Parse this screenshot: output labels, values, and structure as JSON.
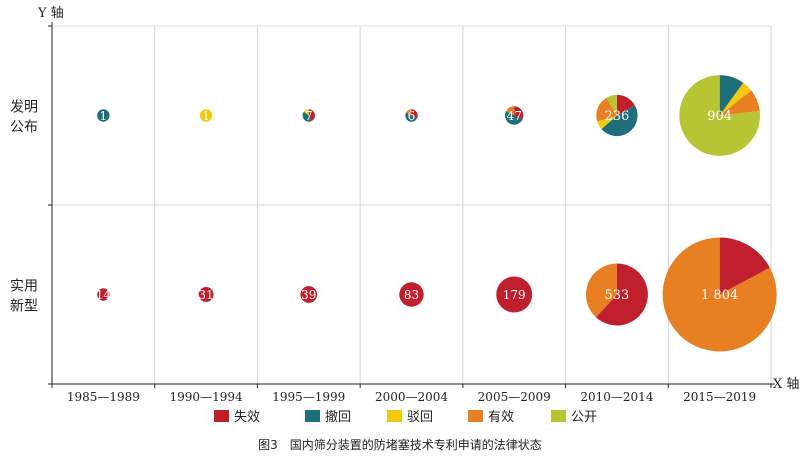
{
  "caption": "图3　国内筛分装置的防堵塞技术专利申请的法律状态",
  "chart_data": {
    "type": "bubble-pie",
    "title": "",
    "xlabel": "X 轴",
    "ylabel": "Y 轴",
    "categories": [
      "1985—1989",
      "1990—1994",
      "1995—1999",
      "2000—2004",
      "2005—2009",
      "2010—2014",
      "2015—2019"
    ],
    "rows": [
      {
        "label": [
          "发明",
          "公布"
        ]
      },
      {
        "label": [
          "实用",
          "新型"
        ]
      }
    ],
    "legend": [
      {
        "name": "失效",
        "color": "#c0202e"
      },
      {
        "name": "撤回",
        "color": "#1f6f7a"
      },
      {
        "name": "驳回",
        "color": "#f2c90f"
      },
      {
        "name": "有效",
        "color": "#e87f23"
      },
      {
        "name": "公开",
        "color": "#b7c535"
      }
    ],
    "legend_placement": "bottom",
    "grid": true,
    "cells": [
      {
        "row": 0,
        "col": 0,
        "total": 1,
        "total_label": "1",
        "slices": {
          "撤回": 1
        }
      },
      {
        "row": 0,
        "col": 1,
        "total": 1,
        "total_label": "1",
        "slices": {
          "驳回": 1
        }
      },
      {
        "row": 0,
        "col": 2,
        "total": 7,
        "total_label": "7",
        "slices": {
          "失效": 3,
          "撤回": 3,
          "驳回": 1
        }
      },
      {
        "row": 0,
        "col": 3,
        "total": 6,
        "total_label": "6",
        "slices": {
          "失效": 2,
          "撤回": 3,
          "有效": 1
        }
      },
      {
        "row": 0,
        "col": 4,
        "total": 47,
        "total_label": "47",
        "slices": {
          "失效": 15,
          "撤回": 24,
          "有效": 8
        }
      },
      {
        "row": 0,
        "col": 5,
        "total": 236,
        "total_label": "236",
        "slices": {
          "失效": 40,
          "撤回": 110,
          "驳回": 16,
          "有效": 50,
          "公开": 20
        }
      },
      {
        "row": 0,
        "col": 6,
        "total": 904,
        "total_label": "904",
        "slices": {
          "撤回": 90,
          "驳回": 40,
          "有效": 80,
          "公开": 694
        }
      },
      {
        "row": 1,
        "col": 0,
        "total": 14,
        "total_label": "14",
        "slices": {
          "失效": 14
        }
      },
      {
        "row": 1,
        "col": 1,
        "total": 31,
        "total_label": "31",
        "slices": {
          "失效": 31
        }
      },
      {
        "row": 1,
        "col": 2,
        "total": 39,
        "total_label": "39",
        "slices": {
          "失效": 39
        }
      },
      {
        "row": 1,
        "col": 3,
        "total": 83,
        "total_label": "83",
        "slices": {
          "失效": 83
        }
      },
      {
        "row": 1,
        "col": 4,
        "total": 179,
        "total_label": "179",
        "slices": {
          "失效": 179
        }
      },
      {
        "row": 1,
        "col": 5,
        "total": 533,
        "total_label": "533",
        "slices": {
          "失效": 330,
          "有效": 203
        }
      },
      {
        "row": 1,
        "col": 6,
        "total": 1804,
        "total_label": "1 804",
        "slices": {
          "失效": 310,
          "有效": 1494
        }
      }
    ]
  }
}
